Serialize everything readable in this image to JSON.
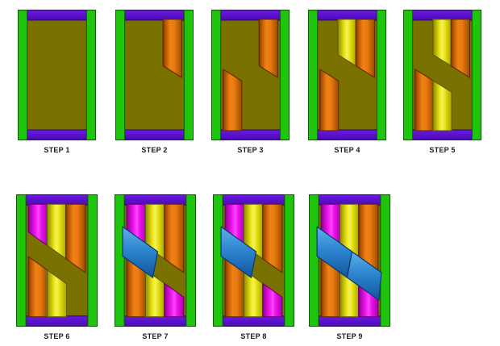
{
  "figure": {
    "description": "nine-step braced frame assembly diagram",
    "rows": [
      {
        "name": "row-1",
        "step_count": 5
      },
      {
        "name": "row-2",
        "step_count": 4
      }
    ]
  },
  "colors": {
    "background": "#ffffff",
    "frame_green": "#1fc40c",
    "frame_green_edge": "#0c5c03",
    "rail_purple": "#5b10cd",
    "rail_purple_edge": "#27095e",
    "panel_olive": "#7a7200",
    "panel_olive_edge": "#403b00",
    "board_orange": "#ee7d10",
    "board_orange_edge": "#5c2b00",
    "board_yellow": "#e9e414",
    "board_yellow_edge": "#5f5c00",
    "board_magenta": "#ee12ee",
    "board_magenta_edge": "#6b006b",
    "brace_blue": "#2e86d1",
    "brace_blue_edge": "#0b3a6e",
    "label_text": "#1b1b24"
  },
  "board_colors": {
    "top": {
      "left": "magenta",
      "middle": "yellow",
      "right": "orange"
    },
    "bottom": {
      "left": "orange",
      "middle": "yellow",
      "right": "magenta"
    }
  },
  "steps": [
    {
      "label": "STEP 1",
      "row": 0,
      "top_boards": [],
      "bottom_boards": [],
      "blue_segments": 0
    },
    {
      "label": "STEP 2",
      "row": 0,
      "top_boards": [
        "right"
      ],
      "bottom_boards": [],
      "blue_segments": 0
    },
    {
      "label": "STEP 3",
      "row": 0,
      "top_boards": [
        "right"
      ],
      "bottom_boards": [
        "left"
      ],
      "blue_segments": 0
    },
    {
      "label": "STEP 4",
      "row": 0,
      "top_boards": [
        "middle",
        "right"
      ],
      "bottom_boards": [
        "left"
      ],
      "blue_segments": 0
    },
    {
      "label": "STEP 5",
      "row": 0,
      "top_boards": [
        "middle",
        "right"
      ],
      "bottom_boards": [
        "left",
        "middle"
      ],
      "blue_segments": 0
    },
    {
      "label": "STEP 6",
      "row": 1,
      "top_boards": [
        "left",
        "middle",
        "right"
      ],
      "bottom_boards": [
        "left",
        "middle"
      ],
      "blue_segments": 0
    },
    {
      "label": "STEP 7",
      "row": 1,
      "top_boards": [
        "left",
        "middle",
        "right"
      ],
      "bottom_boards": [
        "left",
        "middle",
        "right"
      ],
      "blue_segments": 1
    },
    {
      "label": "STEP 8",
      "row": 1,
      "top_boards": [
        "left",
        "middle",
        "right"
      ],
      "bottom_boards": [
        "left",
        "middle",
        "right"
      ],
      "blue_segments": 1
    },
    {
      "label": "STEP 9",
      "row": 1,
      "top_boards": [
        "left",
        "middle",
        "right"
      ],
      "bottom_boards": [
        "left",
        "middle",
        "right"
      ],
      "blue_segments": 2
    }
  ]
}
